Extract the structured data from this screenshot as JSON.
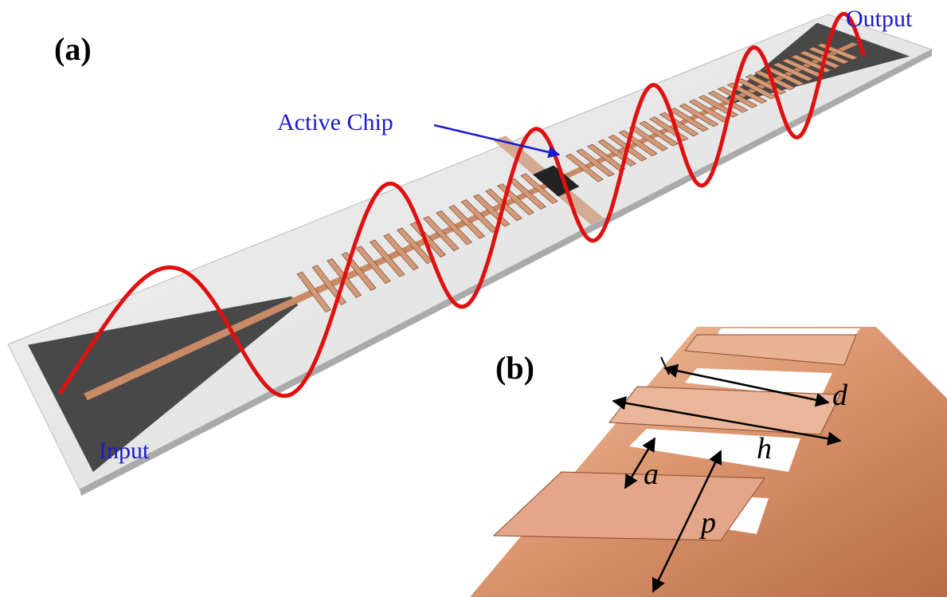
{
  "panel_a": {
    "label": "(a)",
    "input": "Input",
    "output": "Output",
    "active_chip": "Active Chip"
  },
  "panel_b": {
    "label": "(b)",
    "dimensions": [
      "d",
      "h",
      "a",
      "p"
    ]
  }
}
